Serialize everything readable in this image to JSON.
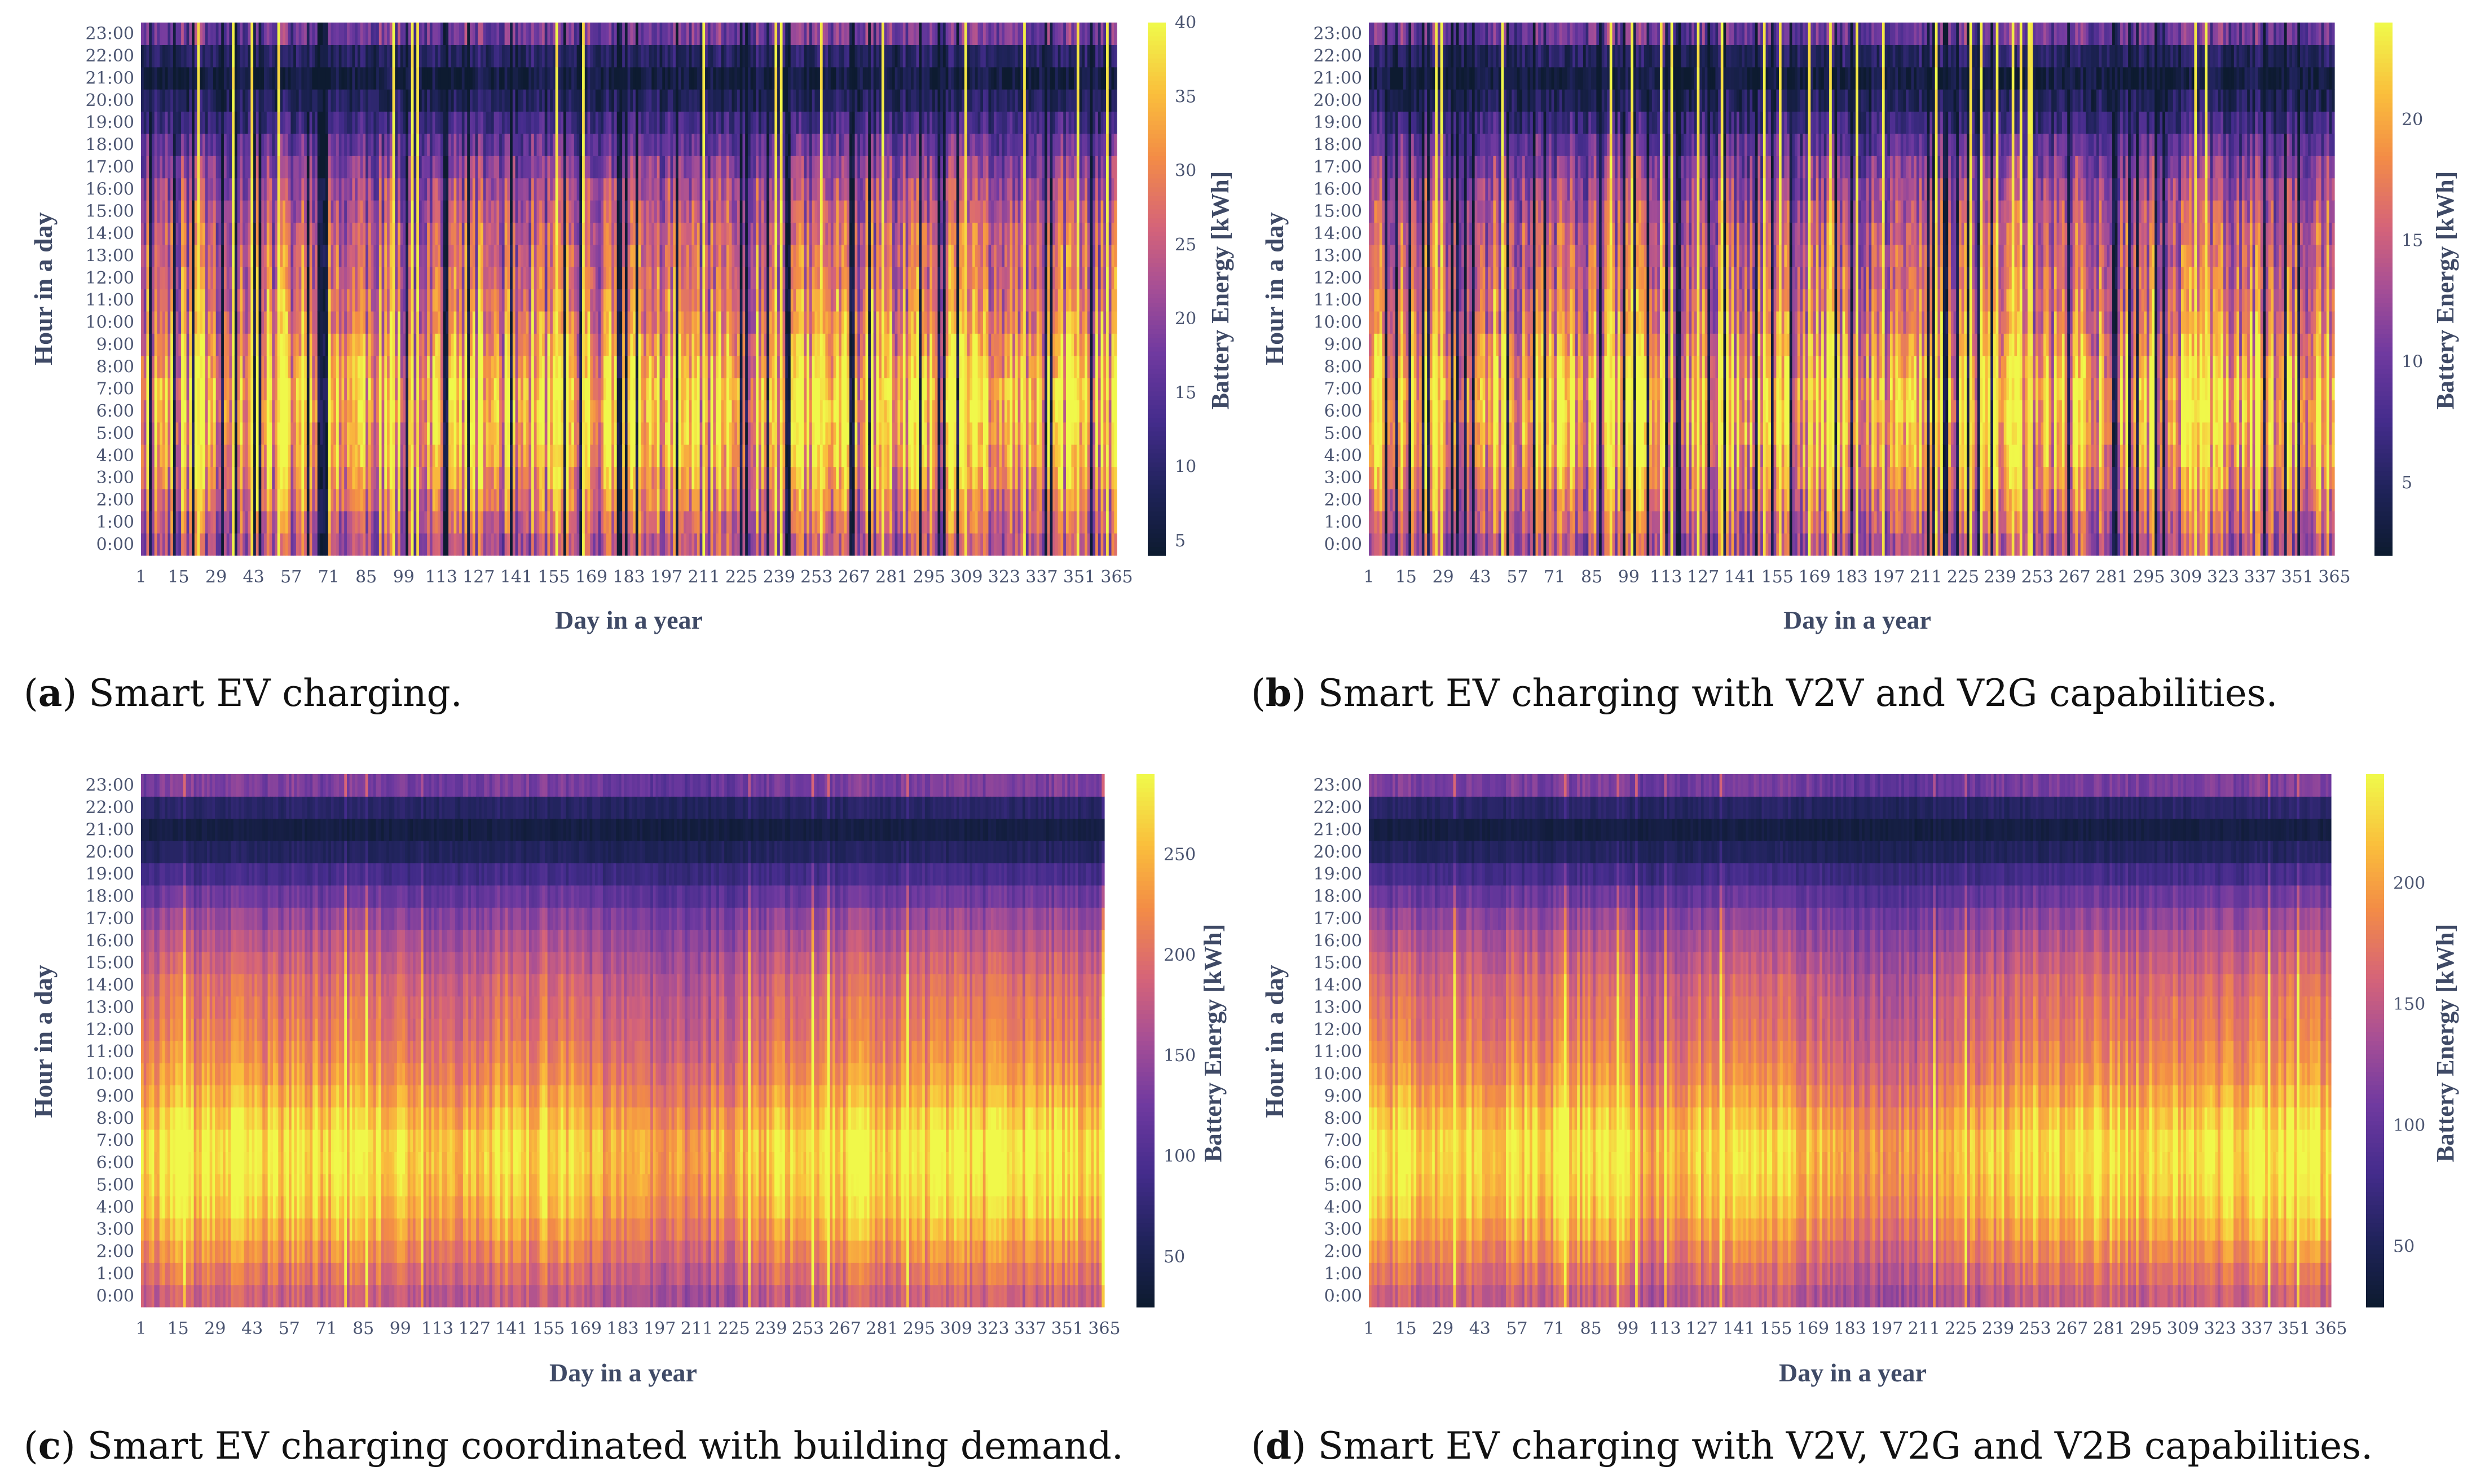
{
  "chart_data": [
    {
      "type": "heatmap",
      "panel": "a",
      "caption_letter": "a",
      "caption_text": "Smart EV charging.",
      "xlabel": "Day in a year",
      "ylabel": "Hour in a day",
      "colorbar_title": "Battery Energy [kWh]",
      "x_ticks": [
        1,
        15,
        29,
        43,
        57,
        71,
        85,
        99,
        113,
        127,
        141,
        155,
        169,
        183,
        197,
        211,
        225,
        239,
        253,
        267,
        281,
        295,
        309,
        323,
        337,
        351,
        365
      ],
      "y_ticks": [
        "0:00",
        "1:00",
        "2:00",
        "3:00",
        "4:00",
        "5:00",
        "6:00",
        "7:00",
        "8:00",
        "9:00",
        "10:00",
        "11:00",
        "12:00",
        "13:00",
        "14:00",
        "15:00",
        "16:00",
        "17:00",
        "18:00",
        "19:00",
        "20:00",
        "21:00",
        "22:00",
        "23:00"
      ],
      "xlim": [
        1,
        365
      ],
      "ylim": [
        0,
        23
      ],
      "colorbar_range": [
        4,
        40
      ],
      "colorbar_ticks": [
        5,
        10,
        15,
        20,
        25,
        30,
        35,
        40
      ],
      "colorscale": "plasma-like (dark navy to yellow)",
      "pattern": "striped"
    },
    {
      "type": "heatmap",
      "panel": "b",
      "caption_letter": "b",
      "caption_text": "Smart EV charging with V2V and V2G capabilities.",
      "xlabel": "Day in a year",
      "ylabel": "Hour in a day",
      "colorbar_title": "Battery Energy [kWh]",
      "x_ticks": [
        1,
        15,
        29,
        43,
        57,
        71,
        85,
        99,
        113,
        127,
        141,
        155,
        169,
        183,
        197,
        211,
        225,
        239,
        253,
        267,
        281,
        295,
        309,
        323,
        337,
        351,
        365
      ],
      "y_ticks": [
        "0:00",
        "1:00",
        "2:00",
        "3:00",
        "4:00",
        "5:00",
        "6:00",
        "7:00",
        "8:00",
        "9:00",
        "10:00",
        "11:00",
        "12:00",
        "13:00",
        "14:00",
        "15:00",
        "16:00",
        "17:00",
        "18:00",
        "19:00",
        "20:00",
        "21:00",
        "22:00",
        "23:00"
      ],
      "xlim": [
        1,
        365
      ],
      "ylim": [
        0,
        23
      ],
      "colorbar_range": [
        2,
        24
      ],
      "colorbar_ticks": [
        5,
        10,
        15,
        20
      ],
      "colorscale": "plasma-like (dark navy to yellow)",
      "pattern": "striped"
    },
    {
      "type": "heatmap",
      "panel": "c",
      "caption_letter": "c",
      "caption_text": "Smart EV charging coordinated with building demand.",
      "xlabel": "Day in a year",
      "ylabel": "Hour in a day",
      "colorbar_title": "Battery Energy [kWh]",
      "x_ticks": [
        1,
        15,
        29,
        43,
        57,
        71,
        85,
        99,
        113,
        127,
        141,
        155,
        169,
        183,
        197,
        211,
        225,
        239,
        253,
        267,
        281,
        295,
        309,
        323,
        337,
        351,
        365
      ],
      "y_ticks": [
        "0:00",
        "1:00",
        "2:00",
        "3:00",
        "4:00",
        "5:00",
        "6:00",
        "7:00",
        "8:00",
        "9:00",
        "10:00",
        "11:00",
        "12:00",
        "13:00",
        "14:00",
        "15:00",
        "16:00",
        "17:00",
        "18:00",
        "19:00",
        "20:00",
        "21:00",
        "22:00",
        "23:00"
      ],
      "xlim": [
        1,
        365
      ],
      "ylim": [
        0,
        23
      ],
      "colorbar_range": [
        25,
        290
      ],
      "colorbar_ticks": [
        50,
        100,
        150,
        200,
        250
      ],
      "colorscale": "plasma-like (dark navy to yellow)",
      "pattern": "smooth"
    },
    {
      "type": "heatmap",
      "panel": "d",
      "caption_letter": "d",
      "caption_text": "Smart EV charging with V2V, V2G and V2B capabilities.",
      "xlabel": "Day in a year",
      "ylabel": "Hour in a day",
      "colorbar_title": "Battery Energy [kWh]",
      "x_ticks": [
        1,
        15,
        29,
        43,
        57,
        71,
        85,
        99,
        113,
        127,
        141,
        155,
        169,
        183,
        197,
        211,
        225,
        239,
        253,
        267,
        281,
        295,
        309,
        323,
        337,
        351,
        365
      ],
      "y_ticks": [
        "0:00",
        "1:00",
        "2:00",
        "3:00",
        "4:00",
        "5:00",
        "6:00",
        "7:00",
        "8:00",
        "9:00",
        "10:00",
        "11:00",
        "12:00",
        "13:00",
        "14:00",
        "15:00",
        "16:00",
        "17:00",
        "18:00",
        "19:00",
        "20:00",
        "21:00",
        "22:00",
        "23:00"
      ],
      "xlim": [
        1,
        365
      ],
      "ylim": [
        0,
        23
      ],
      "colorbar_range": [
        25,
        245
      ],
      "colorbar_ticks": [
        50,
        100,
        150,
        200
      ],
      "colorscale": "plasma-like (dark navy to yellow)",
      "pattern": "smooth"
    }
  ]
}
